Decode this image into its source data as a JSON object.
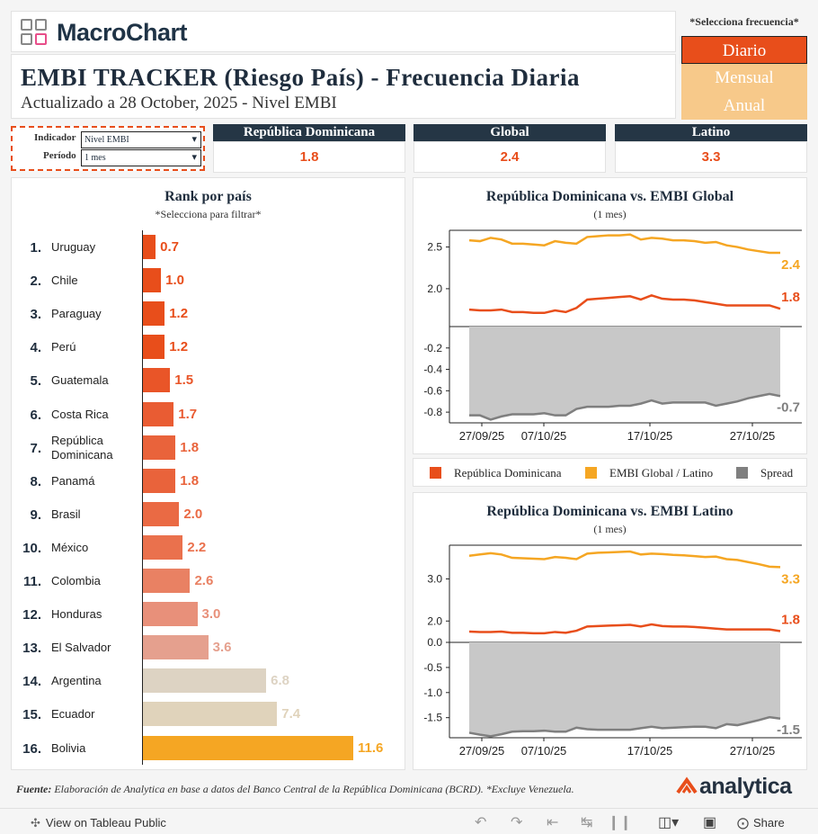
{
  "header": {
    "logo": "MacroChart",
    "title": "EMBI TRACKER (Riesgo País) - Frecuencia Diaria",
    "subtitle": "Actualizado a 28 October, 2025 - Nivel EMBI"
  },
  "frequency": {
    "label": "*Selecciona frecuencia*",
    "options": [
      "Diario",
      "Mensual",
      "Anual"
    ],
    "selected": "Diario",
    "active_color": "#e84e1b",
    "inactive_color": "#f7c98a"
  },
  "filters": {
    "indicator_label": "Indicador",
    "indicator_value": "Nivel EMBI",
    "period_label": "Período",
    "period_value": "1 mes"
  },
  "kpis": [
    {
      "name": "República Dominicana",
      "value": "1.8"
    },
    {
      "name": "Global",
      "value": "2.4"
    },
    {
      "name": "Latino",
      "value": "3.3"
    }
  ],
  "rank": {
    "title": "Rank por país",
    "subtitle": "*Selecciona para filtrar*",
    "items": [
      {
        "rank": "1.",
        "country": "Uruguay",
        "value": 0.7,
        "label": "0.7",
        "color": "#e84e1b"
      },
      {
        "rank": "2.",
        "country": "Chile",
        "value": 1.0,
        "label": "1.0",
        "color": "#e84e1b"
      },
      {
        "rank": "3.",
        "country": "Paraguay",
        "value": 1.2,
        "label": "1.2",
        "color": "#e84e1b"
      },
      {
        "rank": "4.",
        "country": "Perú",
        "value": 1.2,
        "label": "1.2",
        "color": "#e84e1b"
      },
      {
        "rank": "5.",
        "country": "Guatemala",
        "value": 1.5,
        "label": "1.5",
        "color": "#e95528"
      },
      {
        "rank": "6.",
        "country": "Costa Rica",
        "value": 1.7,
        "label": "1.7",
        "color": "#e95c33"
      },
      {
        "rank": "7.",
        "country": "República Dominicana",
        "value": 1.8,
        "label": "1.8",
        "color": "#e9633b"
      },
      {
        "rank": "8.",
        "country": "Panamá",
        "value": 1.8,
        "label": "1.8",
        "color": "#e9633b"
      },
      {
        "rank": "9.",
        "country": "Brasil",
        "value": 2.0,
        "label": "2.0",
        "color": "#ea6a44"
      },
      {
        "rank": "10.",
        "country": "México",
        "value": 2.2,
        "label": "2.2",
        "color": "#ea714d"
      },
      {
        "rank": "11.",
        "country": "Colombia",
        "value": 2.6,
        "label": "2.6",
        "color": "#e98163"
      },
      {
        "rank": "12.",
        "country": "Honduras",
        "value": 3.0,
        "label": "3.0",
        "color": "#e8907a"
      },
      {
        "rank": "13.",
        "country": "El Salvador",
        "value": 3.6,
        "label": "3.6",
        "color": "#e5a08e"
      },
      {
        "rank": "14.",
        "country": "Argentina",
        "value": 6.8,
        "label": "6.8",
        "color": "#ddd3c3"
      },
      {
        "rank": "15.",
        "country": "Ecuador",
        "value": 7.4,
        "label": "7.4",
        "color": "#e0d3bb"
      },
      {
        "rank": "16.",
        "country": "Bolivia",
        "value": 11.6,
        "label": "11.6",
        "color": "#f5a623"
      }
    ]
  },
  "chart_data": [
    {
      "type": "line",
      "title": "República Dominicana vs. EMBI Global",
      "subtitle": "(1 mes)",
      "x_ticks": [
        "27/09/25",
        "07/10/25",
        "17/10/25",
        "27/10/25"
      ],
      "upper_ticks": [
        "2.5",
        "2.0"
      ],
      "lower_ticks": [
        "-0.2",
        "-0.4",
        "-0.6",
        "-0.8"
      ],
      "upper_ylim": [
        1.6,
        2.7
      ],
      "lower_ylim": [
        -0.9,
        0.0
      ],
      "series": [
        {
          "name": "República Dominicana",
          "color": "#e84e1b",
          "end_label": "1.8",
          "values": [
            1.75,
            1.74,
            1.74,
            1.75,
            1.72,
            1.72,
            1.71,
            1.71,
            1.74,
            1.72,
            1.77,
            1.87,
            1.88,
            1.89,
            1.9,
            1.91,
            1.87,
            1.92,
            1.88,
            1.87,
            1.87,
            1.86,
            1.84,
            1.82,
            1.8,
            1.8,
            1.8,
            1.8,
            1.8,
            1.76
          ]
        },
        {
          "name": "EMBI Global",
          "color": "#f5a623",
          "end_label": "2.4",
          "values": [
            2.58,
            2.57,
            2.61,
            2.59,
            2.54,
            2.54,
            2.53,
            2.52,
            2.57,
            2.55,
            2.54,
            2.62,
            2.63,
            2.64,
            2.64,
            2.65,
            2.59,
            2.61,
            2.6,
            2.58,
            2.58,
            2.57,
            2.55,
            2.56,
            2.52,
            2.5,
            2.47,
            2.45,
            2.43,
            2.43
          ]
        },
        {
          "name": "Spread",
          "color": "#7f7f7f",
          "end_label": "-0.7",
          "values": [
            -0.83,
            -0.83,
            -0.87,
            -0.84,
            -0.82,
            -0.82,
            -0.82,
            -0.81,
            -0.83,
            -0.83,
            -0.77,
            -0.75,
            -0.75,
            -0.75,
            -0.74,
            -0.74,
            -0.72,
            -0.69,
            -0.72,
            -0.71,
            -0.71,
            -0.71,
            -0.71,
            -0.74,
            -0.72,
            -0.7,
            -0.67,
            -0.65,
            -0.63,
            -0.65
          ]
        }
      ]
    },
    {
      "type": "line",
      "title": "República Dominicana vs. EMBI Latino",
      "subtitle": "(1 mes)",
      "x_ticks": [
        "27/09/25",
        "07/10/25",
        "17/10/25",
        "27/10/25"
      ],
      "upper_ticks": [
        "3.0",
        "2.0"
      ],
      "lower_ticks": [
        "0.0",
        "-0.5",
        "-1.0",
        "-1.5"
      ],
      "upper_ylim": [
        1.6,
        3.8
      ],
      "lower_ylim": [
        -1.9,
        0.0
      ],
      "series": [
        {
          "name": "República Dominicana",
          "color": "#e84e1b",
          "end_label": "1.8",
          "values": [
            1.75,
            1.74,
            1.74,
            1.75,
            1.72,
            1.72,
            1.71,
            1.71,
            1.74,
            1.72,
            1.77,
            1.87,
            1.88,
            1.89,
            1.9,
            1.91,
            1.87,
            1.92,
            1.88,
            1.87,
            1.87,
            1.86,
            1.84,
            1.82,
            1.8,
            1.8,
            1.8,
            1.8,
            1.8,
            1.76
          ]
        },
        {
          "name": "EMBI Latino",
          "color": "#f5a623",
          "end_label": "3.3",
          "values": [
            3.55,
            3.58,
            3.61,
            3.58,
            3.5,
            3.49,
            3.48,
            3.47,
            3.52,
            3.5,
            3.47,
            3.6,
            3.62,
            3.63,
            3.64,
            3.65,
            3.58,
            3.6,
            3.59,
            3.57,
            3.56,
            3.54,
            3.52,
            3.53,
            3.47,
            3.45,
            3.4,
            3.35,
            3.29,
            3.28
          ]
        },
        {
          "name": "Spread",
          "color": "#7f7f7f",
          "end_label": "-1.5",
          "values": [
            -1.8,
            -1.84,
            -1.87,
            -1.83,
            -1.78,
            -1.77,
            -1.77,
            -1.76,
            -1.78,
            -1.78,
            -1.7,
            -1.73,
            -1.74,
            -1.74,
            -1.74,
            -1.74,
            -1.71,
            -1.68,
            -1.71,
            -1.7,
            -1.69,
            -1.68,
            -1.68,
            -1.71,
            -1.63,
            -1.65,
            -1.6,
            -1.55,
            -1.49,
            -1.52
          ]
        }
      ]
    }
  ],
  "legend": [
    {
      "label": "República Dominicana",
      "color": "#e84e1b"
    },
    {
      "label": "EMBI Global / Latino",
      "color": "#f5a623"
    },
    {
      "label": "Spread",
      "color": "#7f7f7f"
    }
  ],
  "footer": {
    "source_bold": "Fuente:",
    "source_text": " Elaboración de Analytica en base a datos del Banco Central de la República Dominicana (BCRD). *Excluye Venezuela.",
    "brand": "analytica"
  },
  "toolbar": {
    "view_label": "View on Tableau Public",
    "share_label": "Share"
  }
}
